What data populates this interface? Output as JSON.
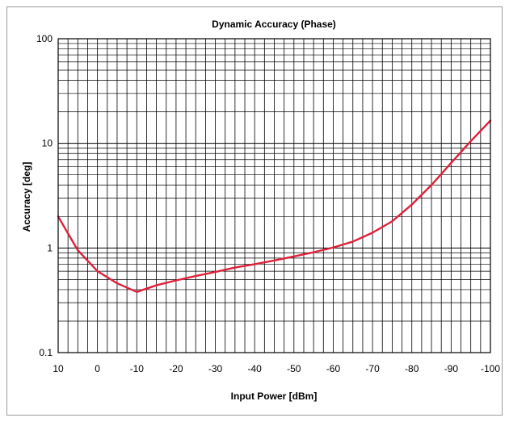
{
  "chart_data": {
    "type": "line",
    "title": "Dynamic Accuracy (Phase)",
    "xlabel": "Input Power [dBm]",
    "ylabel": "Accuracy [deg]",
    "x_ticks": [
      10,
      0,
      -10,
      -20,
      -30,
      -40,
      -50,
      -60,
      -70,
      -80,
      -90,
      -100
    ],
    "x_minor_step": 2.5,
    "xlim": [
      10,
      -100
    ],
    "x_reversed": true,
    "y_scale": "log",
    "ylim": [
      0.1,
      100
    ],
    "y_ticks": [
      0.1,
      1,
      10,
      100
    ],
    "y_tick_labels": [
      "0.1",
      "1",
      "10",
      "100"
    ],
    "grid": true,
    "legend": "none",
    "colors": {
      "series": "#e0203a",
      "grid": "#000000"
    },
    "series": [
      {
        "x": [
          10,
          5,
          0,
          -5,
          -10,
          -15,
          -20,
          -25,
          -30,
          -35,
          -40,
          -45,
          -50,
          -55,
          -60,
          -65,
          -70,
          -75,
          -80,
          -85,
          -90,
          -95,
          -100
        ],
        "y": [
          2.0,
          0.95,
          0.6,
          0.46,
          0.38,
          0.44,
          0.49,
          0.54,
          0.59,
          0.65,
          0.7,
          0.76,
          0.83,
          0.91,
          1.01,
          1.15,
          1.4,
          1.8,
          2.6,
          4.0,
          6.5,
          10.5,
          16.5
        ]
      }
    ]
  }
}
